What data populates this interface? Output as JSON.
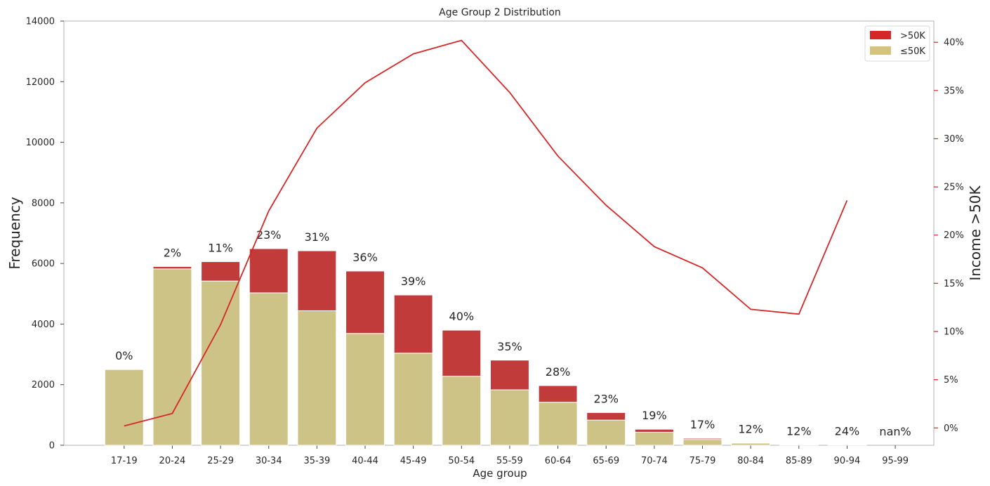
{
  "chart_data": {
    "type": "bar",
    "title": "Age Group 2 Distribution",
    "xlabel": "Age group",
    "ylabel": "Frequency",
    "y2label": "Income >50K",
    "stacked": true,
    "categories": [
      "17-19",
      "20-24",
      "25-29",
      "30-34",
      "35-39",
      "40-44",
      "45-49",
      "50-54",
      "55-59",
      "60-64",
      "65-69",
      "70-74",
      "75-79",
      "80-84",
      "85-89",
      "90-94",
      "95-99"
    ],
    "series": [
      {
        "name": "≤50K",
        "color": "#d4c37c",
        "values": [
          2500,
          5820,
          5420,
          5030,
          4440,
          3690,
          3040,
          2280,
          1830,
          1420,
          830,
          430,
          190,
          70,
          15,
          10,
          0
        ]
      },
      {
        "name": ">50K",
        "color": "#d62728",
        "values": [
          0,
          80,
          640,
          1460,
          1980,
          2060,
          1920,
          1520,
          980,
          550,
          250,
          100,
          40,
          10,
          2,
          3,
          0
        ]
      }
    ],
    "line": {
      "name": "Income >50K",
      "color": "#d62728",
      "axis": "right",
      "unit": "%",
      "values": [
        0.2,
        1.5,
        10.7,
        22.5,
        31.1,
        35.8,
        38.8,
        40.2,
        34.8,
        28.2,
        23.1,
        18.8,
        16.6,
        12.3,
        11.8,
        23.6,
        null
      ]
    },
    "pct_labels": [
      "0%",
      "2%",
      "11%",
      "23%",
      "31%",
      "36%",
      "39%",
      "40%",
      "35%",
      "28%",
      "23%",
      "19%",
      "17%",
      "12%",
      "12%",
      "24%",
      "nan%"
    ],
    "ylim": [
      0,
      14000
    ],
    "yticks": [
      0,
      2000,
      4000,
      6000,
      8000,
      10000,
      12000,
      14000
    ],
    "y2lim": [
      -1.8,
      42.2
    ],
    "y2ticks": [
      0,
      5,
      10,
      15,
      20,
      25,
      30,
      35,
      40
    ],
    "y2tick_labels": [
      "0%",
      "5%",
      "10%",
      "15%",
      "20%",
      "25%",
      "30%",
      "35%",
      "40%"
    ],
    "legend": {
      "position": "top-right",
      "entries": [
        ">50K",
        "≤50K"
      ]
    },
    "grid": false
  }
}
